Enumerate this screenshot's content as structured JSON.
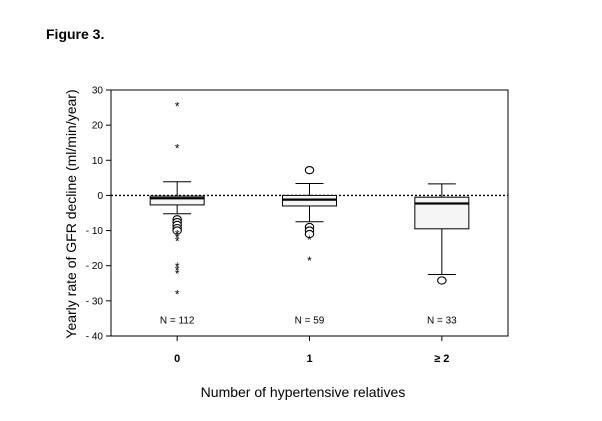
{
  "figure_label": "Figure 3.",
  "chart_data": {
    "type": "box",
    "xlabel": "Number of hypertensive relatives",
    "ylabel": "Yearly rate of GFR decline (ml/min/year)",
    "ylim": [
      -40,
      30
    ],
    "yticks": [
      30,
      20,
      10,
      0,
      -10,
      -20,
      -30,
      -40
    ],
    "ytick_labels": [
      "30",
      "20",
      "10",
      "0",
      "- 10",
      "- 20",
      "- 30",
      "- 40"
    ],
    "reference_line": 0,
    "categories": [
      "0",
      "1",
      "≥ 2"
    ],
    "n_labels": [
      "N = 112",
      "N = 59",
      "N = 33"
    ],
    "n_label_y": -35.5,
    "boxes": [
      {
        "whisker_low": -5.2,
        "q1": -2.7,
        "median": -0.8,
        "q3": -0.2,
        "whisker_high": 3.9,
        "outliers": [
          {
            "v": 25.5,
            "m": "star"
          },
          {
            "v": 13.5,
            "m": "star"
          },
          {
            "v": -6.8,
            "m": "circle"
          },
          {
            "v": -7.6,
            "m": "circle"
          },
          {
            "v": -8.4,
            "m": "circle"
          },
          {
            "v": -9.3,
            "m": "circle"
          },
          {
            "v": -10.0,
            "m": "circle"
          },
          {
            "v": -11.0,
            "m": "star"
          },
          {
            "v": -12.0,
            "m": "star"
          },
          {
            "v": -13.0,
            "m": "star"
          },
          {
            "v": -20.2,
            "m": "star"
          },
          {
            "v": -21.2,
            "m": "star"
          },
          {
            "v": -22.2,
            "m": "star"
          },
          {
            "v": -28.0,
            "m": "star"
          }
        ]
      },
      {
        "whisker_low": -7.5,
        "q1": -3.0,
        "median": -1.2,
        "q3": 0.0,
        "whisker_high": 3.4,
        "outliers": [
          {
            "v": 7.2,
            "m": "circle"
          },
          {
            "v": -9.0,
            "m": "circle"
          },
          {
            "v": -10.0,
            "m": "circle"
          },
          {
            "v": -11.0,
            "m": "circle"
          },
          {
            "v": -12.5,
            "m": "star"
          },
          {
            "v": -18.5,
            "m": "star"
          }
        ]
      },
      {
        "whisker_low": -22.5,
        "q1": -9.5,
        "median": -2.3,
        "q3": -0.5,
        "whisker_high": 3.3,
        "outliers": [
          {
            "v": -24.2,
            "m": "circle"
          }
        ]
      }
    ]
  }
}
